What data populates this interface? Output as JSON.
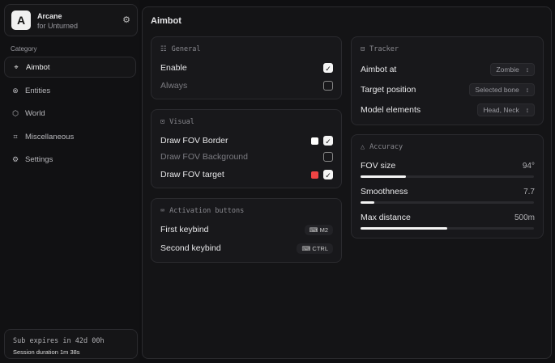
{
  "brand": {
    "logo": "A",
    "name": "Arcane",
    "subtitle": "for Unturned"
  },
  "sidebar": {
    "category_label": "Category",
    "items": [
      {
        "label": "Aimbot",
        "icon": "crosshair-icon"
      },
      {
        "label": "Entities",
        "icon": "entities-icon"
      },
      {
        "label": "World",
        "icon": "cube-icon"
      },
      {
        "label": "Miscellaneous",
        "icon": "grid-icon"
      },
      {
        "label": "Settings",
        "icon": "gear-icon"
      }
    ]
  },
  "subscription": {
    "expires": "Sub expires in 42d 00h",
    "session": "Session duration 1m 38s"
  },
  "page": {
    "title": "Aimbot"
  },
  "general": {
    "title": "General",
    "enable": {
      "label": "Enable",
      "checked": true
    },
    "always": {
      "label": "Always",
      "checked": false
    }
  },
  "visual": {
    "title": "Visual",
    "border": {
      "label": "Draw FOV Border",
      "checked": true,
      "color": "#ffffff"
    },
    "background": {
      "label": "Draw FOV Background",
      "checked": false
    },
    "target": {
      "label": "Draw FOV target",
      "checked": true,
      "color": "#ef4444"
    }
  },
  "activation": {
    "title": "Activation buttons",
    "first": {
      "label": "First keybind",
      "key": "M2"
    },
    "second": {
      "label": "Second keybind",
      "key": "CTRL"
    }
  },
  "tracker": {
    "title": "Tracker",
    "aim_at": {
      "label": "Aimbot at",
      "value": "Zombie"
    },
    "target": {
      "label": "Target position",
      "value": "Selected bone"
    },
    "model": {
      "label": "Model elements",
      "value": "Head, Neck"
    }
  },
  "accuracy": {
    "title": "Accuracy",
    "fov": {
      "label": "FOV size",
      "value": "94°",
      "fraction": 0.26
    },
    "smooth": {
      "label": "Smoothness",
      "value": "7.7",
      "fraction": 0.08
    },
    "distance": {
      "label": "Max distance",
      "value": "500m",
      "fraction": 0.5
    }
  }
}
